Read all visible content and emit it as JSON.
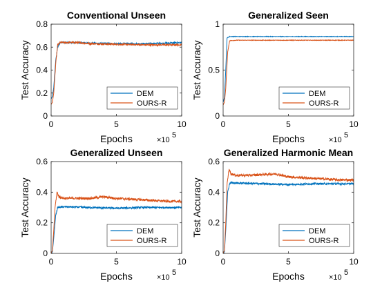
{
  "colors": {
    "DEM": "#0072BD",
    "OURS-R": "#D95319"
  },
  "chart_data": [
    {
      "type": "line",
      "title": "Conventional Unseen",
      "xlabel": "Epochs",
      "ylabel": "Test Accuracy",
      "x_multiplier": "×10",
      "x_multiplier_exp": "5",
      "xlim": [
        0,
        10
      ],
      "ylim": [
        0,
        0.8
      ],
      "xticks": [
        "0",
        "5",
        "10"
      ],
      "yticks": [
        "0",
        "0.2",
        "0.4",
        "0.6",
        "0.8"
      ],
      "legend": "bottom-right",
      "series": [
        {
          "name": "DEM",
          "color": "#0072BD",
          "noise": 0.006,
          "points": [
            [
              0,
              0.15
            ],
            [
              0.1,
              0.17
            ],
            [
              0.2,
              0.25
            ],
            [
              0.35,
              0.48
            ],
            [
              0.5,
              0.6
            ],
            [
              0.7,
              0.64
            ],
            [
              1,
              0.64
            ],
            [
              2,
              0.64
            ],
            [
              3,
              0.635
            ],
            [
              5,
              0.63
            ],
            [
              7,
              0.63
            ],
            [
              9,
              0.635
            ],
            [
              10,
              0.64
            ]
          ]
        },
        {
          "name": "OURS-R",
          "color": "#D95319",
          "noise": 0.008,
          "points": [
            [
              0,
              0.1
            ],
            [
              0.1,
              0.12
            ],
            [
              0.2,
              0.2
            ],
            [
              0.35,
              0.45
            ],
            [
              0.5,
              0.62
            ],
            [
              0.7,
              0.64
            ],
            [
              1,
              0.64
            ],
            [
              2,
              0.64
            ],
            [
              3,
              0.63
            ],
            [
              5,
              0.625
            ],
            [
              7,
              0.62
            ],
            [
              9,
              0.62
            ],
            [
              10,
              0.62
            ]
          ]
        }
      ]
    },
    {
      "type": "line",
      "title": "Generalized Seen",
      "xlabel": "Epochs",
      "ylabel": "Test Accuracy",
      "x_multiplier": "×10",
      "x_multiplier_exp": "5",
      "xlim": [
        0,
        10
      ],
      "ylim": [
        0,
        1
      ],
      "xticks": [
        "0",
        "5",
        "10"
      ],
      "yticks": [
        "0",
        "0.5",
        "1"
      ],
      "legend": "bottom-right",
      "series": [
        {
          "name": "DEM",
          "color": "#0072BD",
          "noise": 0.003,
          "points": [
            [
              0,
              0.15
            ],
            [
              0.1,
              0.2
            ],
            [
              0.2,
              0.5
            ],
            [
              0.3,
              0.85
            ],
            [
              0.5,
              0.865
            ],
            [
              1,
              0.865
            ],
            [
              5,
              0.865
            ],
            [
              10,
              0.865
            ]
          ]
        },
        {
          "name": "OURS-R",
          "color": "#D95319",
          "noise": 0.003,
          "points": [
            [
              0,
              0.12
            ],
            [
              0.1,
              0.15
            ],
            [
              0.2,
              0.3
            ],
            [
              0.35,
              0.7
            ],
            [
              0.5,
              0.82
            ],
            [
              1,
              0.825
            ],
            [
              5,
              0.825
            ],
            [
              10,
              0.825
            ]
          ]
        }
      ]
    },
    {
      "type": "line",
      "title": "Generalized Unseen",
      "xlabel": "Epochs",
      "ylabel": "Test Accuracy",
      "x_multiplier": "×10",
      "x_multiplier_exp": "5",
      "xlim": [
        0,
        10
      ],
      "ylim": [
        0,
        0.6
      ],
      "xticks": [
        "0",
        "5",
        "10"
      ],
      "yticks": [
        "0",
        "0.2",
        "0.4",
        "0.6"
      ],
      "legend": "bottom-right",
      "series": [
        {
          "name": "DEM",
          "color": "#0072BD",
          "noise": 0.006,
          "points": [
            [
              0,
              0.0
            ],
            [
              0.1,
              0.01
            ],
            [
              0.2,
              0.1
            ],
            [
              0.35,
              0.25
            ],
            [
              0.5,
              0.3
            ],
            [
              1,
              0.305
            ],
            [
              3,
              0.3
            ],
            [
              5,
              0.295
            ],
            [
              7,
              0.3
            ],
            [
              10,
              0.3
            ]
          ]
        },
        {
          "name": "OURS-R",
          "color": "#D95319",
          "noise": 0.008,
          "points": [
            [
              0,
              0.0
            ],
            [
              0.1,
              0.02
            ],
            [
              0.2,
              0.15
            ],
            [
              0.3,
              0.3
            ],
            [
              0.45,
              0.4
            ],
            [
              0.6,
              0.37
            ],
            [
              1,
              0.36
            ],
            [
              3,
              0.36
            ],
            [
              4,
              0.37
            ],
            [
              5,
              0.36
            ],
            [
              7,
              0.35
            ],
            [
              9,
              0.34
            ],
            [
              10,
              0.34
            ]
          ]
        }
      ]
    },
    {
      "type": "line",
      "title": "Generalized Harmonic Mean",
      "xlabel": "Epochs",
      "ylabel": "Test Accuracy",
      "x_multiplier": "×10",
      "x_multiplier_exp": "5",
      "xlim": [
        0,
        10
      ],
      "ylim": [
        0,
        0.6
      ],
      "xticks": [
        "0",
        "5",
        "10"
      ],
      "yticks": [
        "0",
        "0.2",
        "0.4",
        "0.6"
      ],
      "legend": "bottom-right",
      "series": [
        {
          "name": "DEM",
          "color": "#0072BD",
          "noise": 0.006,
          "points": [
            [
              0,
              0.0
            ],
            [
              0.1,
              0.01
            ],
            [
              0.2,
              0.15
            ],
            [
              0.35,
              0.4
            ],
            [
              0.5,
              0.46
            ],
            [
              1,
              0.46
            ],
            [
              3,
              0.455
            ],
            [
              5,
              0.45
            ],
            [
              7,
              0.455
            ],
            [
              10,
              0.455
            ]
          ]
        },
        {
          "name": "OURS-R",
          "color": "#D95319",
          "noise": 0.008,
          "points": [
            [
              0,
              0.0
            ],
            [
              0.1,
              0.02
            ],
            [
              0.2,
              0.2
            ],
            [
              0.3,
              0.45
            ],
            [
              0.45,
              0.55
            ],
            [
              0.6,
              0.52
            ],
            [
              1,
              0.51
            ],
            [
              2,
              0.51
            ],
            [
              4,
              0.52
            ],
            [
              5,
              0.5
            ],
            [
              7,
              0.49
            ],
            [
              9,
              0.48
            ],
            [
              10,
              0.48
            ]
          ]
        }
      ]
    }
  ]
}
